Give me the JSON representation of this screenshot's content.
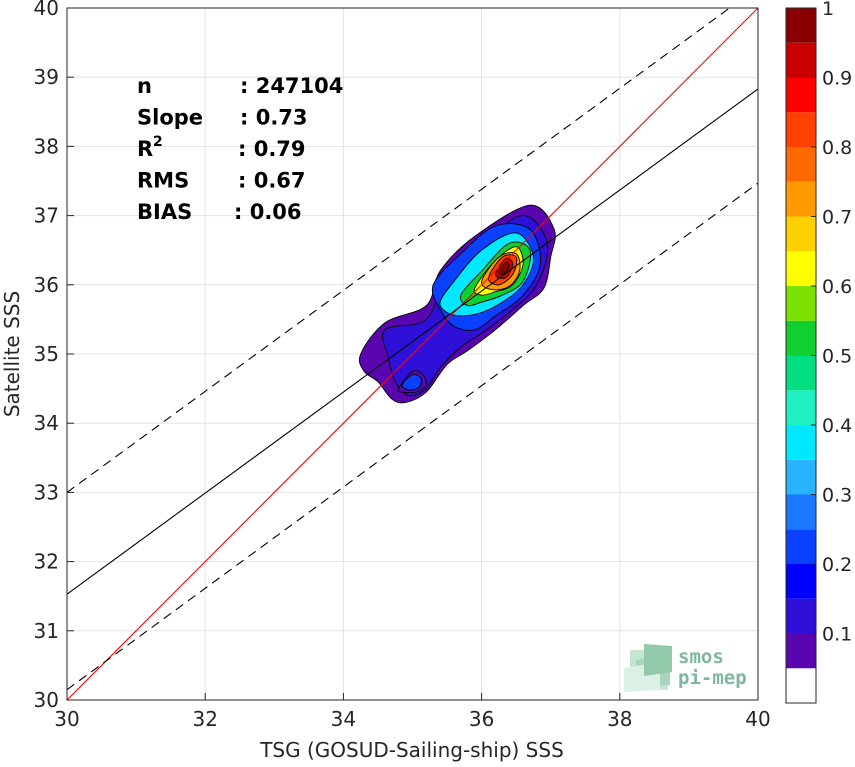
{
  "chart_data": {
    "type": "contour-scatter",
    "xlabel": "TSG (GOSUD-Sailing-ship) SSS",
    "ylabel": "Satellite SSS",
    "xlim": [
      30,
      40
    ],
    "ylim": [
      30,
      40
    ],
    "x_ticks": [
      "30",
      "32",
      "34",
      "36",
      "38",
      "40"
    ],
    "y_ticks": [
      "30",
      "31",
      "32",
      "33",
      "34",
      "35",
      "36",
      "37",
      "38",
      "39",
      "40"
    ],
    "grid": true,
    "stats": [
      {
        "key": "n",
        "value": ": 247104"
      },
      {
        "key": "Slope",
        "value": ": 0.73"
      },
      {
        "key": "R",
        "sup": "2",
        "value": ": 0.79"
      },
      {
        "key": "RMS",
        "value": ": 0.67"
      },
      {
        "key": "BIAS",
        "value": ": 0.06"
      }
    ],
    "lines": [
      {
        "role": "one-to-one",
        "color": "#ff0000",
        "dash": false,
        "x": [
          30,
          40
        ],
        "y": [
          30,
          40
        ]
      },
      {
        "role": "regression",
        "color": "#000000",
        "dash": false,
        "x": [
          30,
          40
        ],
        "y": [
          31.53,
          38.83
        ]
      },
      {
        "role": "upper-bound",
        "color": "#000000",
        "dash": true,
        "x": [
          30,
          40
        ],
        "y": [
          33.0,
          40.3
        ]
      },
      {
        "role": "lower-bound",
        "color": "#000000",
        "dash": true,
        "x": [
          30,
          40
        ],
        "y": [
          30.15,
          37.47
        ]
      }
    ],
    "center": {
      "x": 36.25,
      "y": 36.25
    },
    "density_levels": [
      0.05,
      0.1,
      0.15,
      0.2,
      0.25,
      0.3,
      0.35,
      0.4,
      0.45,
      0.5,
      0.55,
      0.6,
      0.65,
      0.7,
      0.75,
      0.8,
      0.85,
      0.9,
      0.95
    ],
    "level_colors": [
      "#5a06b0",
      "#2e10d8",
      "#0000ff",
      "#0a40ff",
      "#1a78ff",
      "#28b4ff",
      "#00e8ff",
      "#20f0c0",
      "#00e080",
      "#10d030",
      "#7ce000",
      "#ffff00",
      "#ffd000",
      "#ff9a00",
      "#ff6a00",
      "#ff4000",
      "#ff0000",
      "#c80000",
      "#8a0000"
    ],
    "colorbar": {
      "range": [
        0,
        1
      ],
      "ticks": [
        "0.1",
        "0.2",
        "0.3",
        "0.4",
        "0.5",
        "0.6",
        "0.7",
        "0.8",
        "0.9",
        "1"
      ]
    },
    "blobs": [
      {
        "level": 0.05,
        "x": [
          34.25,
          34.6,
          35.2,
          35.4,
          35.9,
          36.7,
          37.05,
          37.0,
          36.9,
          36.6,
          36.2,
          35.8,
          35.5,
          35.2,
          34.9,
          34.7,
          34.5,
          34.3,
          34.25
        ],
        "y": [
          35.0,
          35.45,
          35.7,
          36.2,
          36.7,
          37.15,
          36.8,
          36.4,
          35.95,
          35.7,
          35.35,
          35.05,
          34.85,
          34.45,
          34.3,
          34.35,
          34.6,
          34.75,
          35.0
        ]
      },
      {
        "level": 0.1,
        "x": [
          34.6,
          35.2,
          35.5,
          36.0,
          36.6,
          36.95,
          36.8,
          36.4,
          36.0,
          35.7,
          35.4,
          35.2,
          34.95,
          34.75,
          34.65,
          34.6
        ],
        "y": [
          35.35,
          35.5,
          36.15,
          36.6,
          37.0,
          36.6,
          36.0,
          35.6,
          35.3,
          35.1,
          34.8,
          34.5,
          34.4,
          34.6,
          34.95,
          35.35
        ]
      },
      {
        "level": 0.2,
        "x": [
          35.3,
          35.7,
          36.2,
          36.7,
          36.85,
          36.6,
          36.2,
          35.9,
          35.6,
          35.4,
          35.3
        ],
        "y": [
          36.0,
          36.45,
          36.85,
          36.8,
          36.3,
          35.85,
          35.55,
          35.35,
          35.4,
          35.65,
          36.0
        ]
      },
      {
        "level": 0.35,
        "x": [
          35.4,
          35.6,
          36.0,
          36.5,
          36.75,
          36.6,
          36.3,
          36.0,
          35.7,
          35.5,
          35.4
        ],
        "y": [
          35.75,
          36.05,
          36.5,
          36.75,
          36.4,
          36.0,
          35.75,
          35.6,
          35.55,
          35.6,
          35.75
        ]
      },
      {
        "level": 0.5,
        "x": [
          35.7,
          36.0,
          36.4,
          36.7,
          36.6,
          36.3,
          36.0,
          35.8,
          35.7
        ],
        "y": [
          35.85,
          36.2,
          36.6,
          36.5,
          36.05,
          35.85,
          35.75,
          35.7,
          35.85
        ]
      },
      {
        "level": 0.6,
        "x": [
          35.9,
          36.2,
          36.5,
          36.6,
          36.45,
          36.2,
          36.0,
          35.9
        ],
        "y": [
          35.95,
          36.35,
          36.55,
          36.3,
          36.0,
          35.9,
          35.85,
          35.95
        ]
      },
      {
        "level": 0.7,
        "x": [
          36.0,
          36.25,
          36.5,
          36.55,
          36.4,
          36.15,
          36.0
        ],
        "y": [
          36.05,
          36.4,
          36.45,
          36.2,
          35.98,
          35.93,
          36.05
        ]
      },
      {
        "level": 0.8,
        "x": [
          36.1,
          36.3,
          36.5,
          36.45,
          36.25,
          36.1
        ],
        "y": [
          36.1,
          36.4,
          36.4,
          36.15,
          36.0,
          36.1
        ]
      },
      {
        "level": 0.9,
        "x": [
          36.2,
          36.35,
          36.45,
          36.35,
          36.2
        ],
        "y": [
          36.15,
          36.38,
          36.3,
          36.1,
          36.15
        ]
      },
      {
        "level": 0.95,
        "x": [
          36.25,
          36.35,
          36.4,
          36.3,
          36.25
        ],
        "y": [
          36.2,
          36.33,
          36.25,
          36.15,
          36.2
        ]
      },
      {
        "level": 0.05,
        "x": [
          34.8,
          35.0,
          35.15,
          35.2,
          35.05,
          34.85,
          34.8
        ],
        "y": [
          34.5,
          34.75,
          34.7,
          34.55,
          34.45,
          34.45,
          34.5
        ]
      },
      {
        "level": 0.2,
        "x": [
          34.85,
          35.0,
          35.12,
          35.1,
          34.95,
          34.85
        ],
        "y": [
          34.55,
          34.7,
          34.65,
          34.52,
          34.48,
          34.55
        ]
      }
    ]
  },
  "logo": {
    "line1": "smos",
    "line2": "pi-mep"
  }
}
